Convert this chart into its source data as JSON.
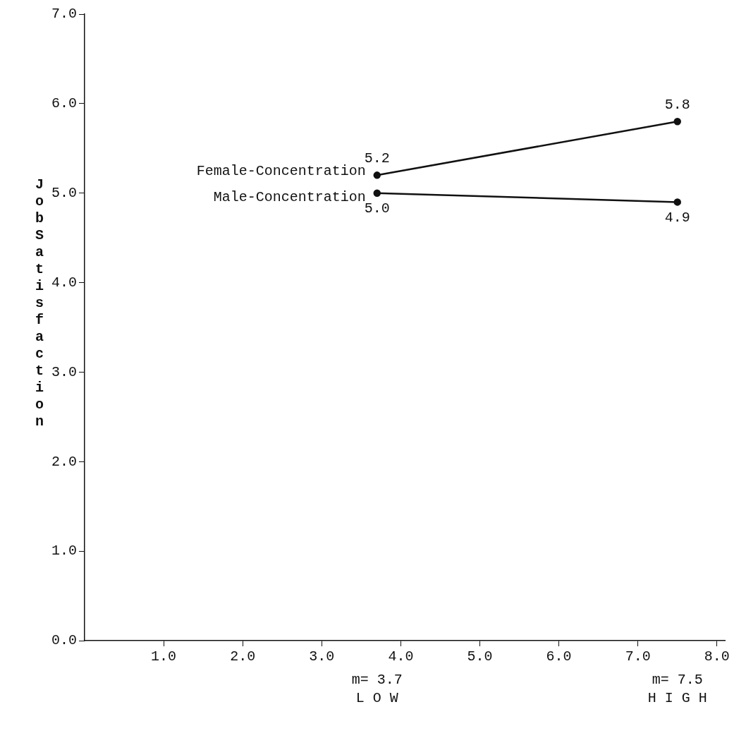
{
  "chart_data": {
    "type": "line",
    "ylabel": "Job Satisfaction",
    "x": [
      3.7,
      7.5
    ],
    "series": [
      {
        "name": "Female-Concentration",
        "color": "#111111",
        "values": [
          5.2,
          5.8
        ],
        "value_labels": [
          "5.2",
          "5.8"
        ]
      },
      {
        "name": "Male-Concentration",
        "color": "#111111",
        "values": [
          5.0,
          4.9
        ],
        "value_labels": [
          "5.0",
          "4.9"
        ]
      }
    ],
    "xlim": [
      0,
      8.1
    ],
    "ylim": [
      0,
      7
    ],
    "xticks": [
      {
        "value": 1,
        "label": "1.0"
      },
      {
        "value": 2,
        "label": "2.0"
      },
      {
        "value": 3,
        "label": "3.0"
      },
      {
        "value": 4,
        "label": "4.0"
      },
      {
        "value": 5,
        "label": "5.0"
      },
      {
        "value": 6,
        "label": "6.0"
      },
      {
        "value": 7,
        "label": "7.0"
      },
      {
        "value": 8,
        "label": "8.0"
      }
    ],
    "yticks": [
      {
        "value": 0,
        "label": "0.0"
      },
      {
        "value": 1,
        "label": "1.0"
      },
      {
        "value": 2,
        "label": "2.0"
      },
      {
        "value": 3,
        "label": "3.0"
      },
      {
        "value": 4,
        "label": "4.0"
      },
      {
        "value": 5,
        "label": "5.0"
      },
      {
        "value": 6,
        "label": "6.0"
      },
      {
        "value": 7,
        "label": "7.0"
      }
    ],
    "annotations": [
      "m= 3.7",
      "L O W",
      "m= 7.5",
      "H I G H"
    ],
    "marker": "circle",
    "line_style": "solid",
    "grid": false,
    "legend": false
  }
}
